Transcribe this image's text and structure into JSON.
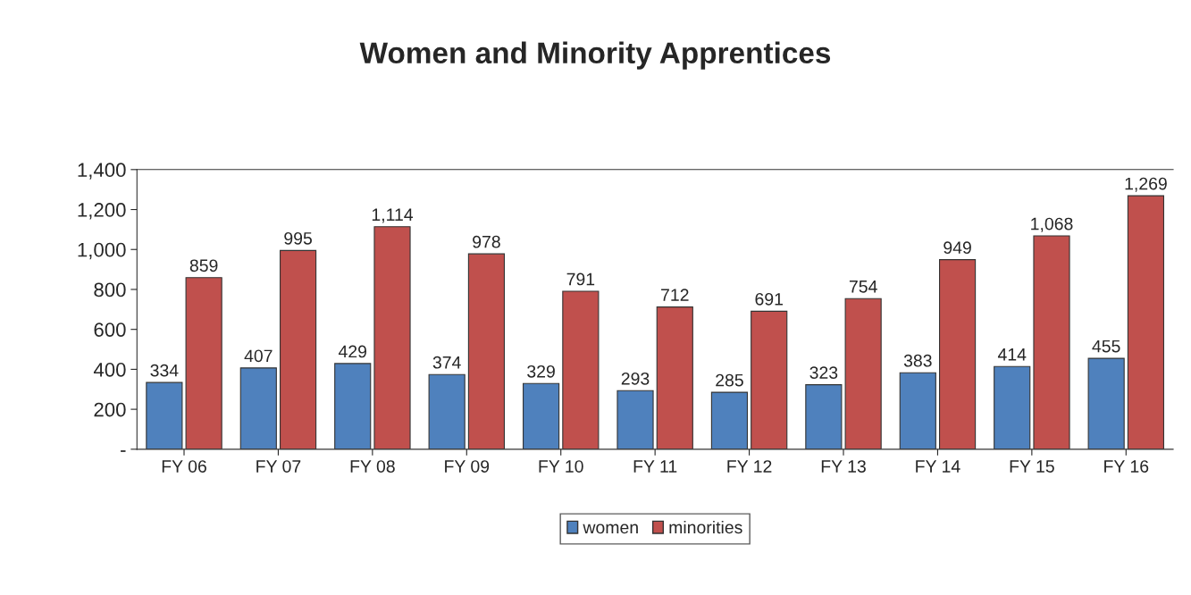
{
  "chart_data": {
    "type": "bar",
    "title": "Women and Minority Apprentices",
    "categories": [
      "FY 06",
      "FY 07",
      "FY 08",
      "FY 09",
      "FY 10",
      "FY 11",
      "FY 12",
      "FY 13",
      "FY 14",
      "FY 15",
      "FY 16"
    ],
    "series": [
      {
        "name": "women",
        "color": "#4f81bd",
        "values": [
          334,
          407,
          429,
          374,
          329,
          293,
          285,
          323,
          383,
          414,
          455
        ],
        "value_labels": [
          "334",
          "407",
          "429",
          "374",
          "329",
          "293",
          "285",
          "323",
          "383",
          "414",
          "455"
        ]
      },
      {
        "name": "minorities",
        "color": "#c0504d",
        "values": [
          859,
          995,
          1114,
          978,
          791,
          712,
          691,
          754,
          949,
          1068,
          1269
        ],
        "value_labels": [
          "859",
          "995",
          "1,114",
          "978",
          "791",
          "712",
          "691",
          "754",
          "949",
          "1,068",
          "1,269"
        ]
      }
    ],
    "ylim": [
      0,
      1400
    ],
    "yticks": [
      {
        "value": 0,
        "label": "-"
      },
      {
        "value": 200,
        "label": "200"
      },
      {
        "value": 400,
        "label": "400"
      },
      {
        "value": 600,
        "label": "600"
      },
      {
        "value": 800,
        "label": "800"
      },
      {
        "value": 1000,
        "label": "1,000"
      },
      {
        "value": 1200,
        "label": "1,200"
      },
      {
        "value": 1400,
        "label": "1,400"
      }
    ],
    "legend": "bottom",
    "grid": false
  }
}
